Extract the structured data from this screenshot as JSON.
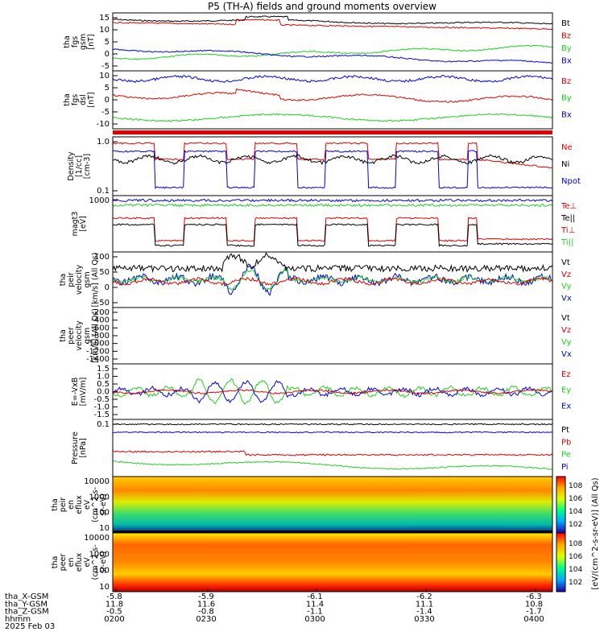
{
  "title": "P5 (TH-A) fields and ground moments overview",
  "colors": {
    "black": "#000000",
    "red": "#e00000",
    "green": "#20d020",
    "blue": "#0000e0"
  },
  "panels": [
    {
      "id": "fgs_gsm",
      "ylabel": [
        "tha",
        "fgs",
        "gsm",
        "[nT]"
      ],
      "ticks": [
        "15",
        "10",
        "5",
        "0",
        "-5"
      ],
      "legend": [
        {
          "text": "Bt",
          "color": "black"
        },
        {
          "text": "Bz",
          "color": "red"
        },
        {
          "text": "By",
          "color": "green"
        },
        {
          "text": "Bx",
          "color": "blue"
        }
      ]
    },
    {
      "id": "fgs_dsl",
      "ylabel": [
        "tha",
        "fgs",
        "dsl",
        "[nT]"
      ],
      "ticks": [
        "10",
        "5",
        "0",
        "-5",
        "-10"
      ],
      "legend": [
        {
          "text": "Bz",
          "color": "red"
        },
        {
          "text": "By",
          "color": "green"
        },
        {
          "text": "Bx",
          "color": "blue"
        }
      ]
    },
    {
      "id": "density",
      "ylabel": [
        "Density",
        "[1/cc]",
        "[cm-3]"
      ],
      "ticks": [
        "1.0",
        "0.1"
      ],
      "legend": [
        {
          "text": "Ne",
          "color": "red"
        },
        {
          "text": "Ni",
          "color": "black"
        },
        {
          "text": "Npot",
          "color": "blue"
        }
      ]
    },
    {
      "id": "temp",
      "ylabel": [
        "magt3",
        "[eV]"
      ],
      "ticks": [
        "1000"
      ],
      "legend": [
        {
          "text": "Te⊥",
          "color": "red"
        },
        {
          "text": "Te||",
          "color": "black"
        },
        {
          "text": "Ti⊥",
          "color": "red"
        },
        {
          "text": "Ti||",
          "color": "green"
        }
      ]
    },
    {
      "id": "peir_vel",
      "ylabel": [
        "tha",
        "peir",
        "velocity",
        "gsm",
        "[km/s] (All Qs)"
      ],
      "ticks": [
        "100",
        "50",
        "0",
        "-50"
      ],
      "legend": [
        {
          "text": "Vt",
          "color": "black"
        },
        {
          "text": "Vz",
          "color": "red"
        },
        {
          "text": "Vy",
          "color": "green"
        },
        {
          "text": "Vx",
          "color": "blue"
        }
      ]
    },
    {
      "id": "peer_vel",
      "ylabel": [
        "tha",
        "peer",
        "velocity",
        "gsm",
        "[km/s] (All Qs)"
      ],
      "ticks": [
        "-200",
        "-400",
        "-600",
        "-800",
        "-1000",
        "-1200",
        "-1400"
      ],
      "legend": [
        {
          "text": "Vt",
          "color": "black"
        },
        {
          "text": "Vz",
          "color": "red"
        },
        {
          "text": "Vy",
          "color": "green"
        },
        {
          "text": "Vx",
          "color": "blue"
        }
      ]
    },
    {
      "id": "efield",
      "ylabel": [
        "E=-VxB",
        "[mV/m]"
      ],
      "ticks": [
        "1.5",
        "1.0",
        "0.5",
        "0.0",
        "-0.5",
        "-1.0",
        "-1.5"
      ],
      "legend": [
        {
          "text": "Ez",
          "color": "red"
        },
        {
          "text": "Ey",
          "color": "green"
        },
        {
          "text": "Ex",
          "color": "blue"
        }
      ]
    },
    {
      "id": "pressure",
      "ylabel": [
        "Pressure",
        "[nPa]"
      ],
      "ticks": [
        "0.1"
      ],
      "legend": [
        {
          "text": "Pt",
          "color": "black"
        },
        {
          "text": "Pb",
          "color": "red"
        },
        {
          "text": "Pe",
          "color": "green"
        },
        {
          "text": "Pi",
          "color": "blue"
        }
      ]
    },
    {
      "id": "peir_en",
      "ylabel": [
        "tha",
        "peir",
        "en",
        "eflux",
        "eV",
        "(cm^2-s-",
        "sr-eV)"
      ],
      "ticks": [
        "10000",
        "1000",
        "100",
        "10"
      ],
      "legend": []
    },
    {
      "id": "peer_en",
      "ylabel": [
        "tha",
        "peer",
        "en",
        "eflux",
        "eV",
        "(cm^2-s-",
        "sr-eV)"
      ],
      "ticks": [
        "10000",
        "1000",
        "100",
        "10"
      ],
      "legend": []
    }
  ],
  "colorbar": {
    "label": "[eV/(cm^2-s-sr-eV)] (All Qs)",
    "ticks_top": [
      "10^8",
      "10^6",
      "10^4",
      "10^2"
    ],
    "ticks_bottom": [
      "10^8",
      "10^6",
      "10^4",
      "10^2"
    ]
  },
  "xaxis": {
    "rows": [
      {
        "label": "tha_X-GSM",
        "values": [
          "-5.8",
          "-5.9",
          "-6.1",
          "-6.2",
          "-6.3"
        ]
      },
      {
        "label": "tha_Y-GSM",
        "values": [
          "11.8",
          "11.6",
          "11.4",
          "11.1",
          "10.8"
        ]
      },
      {
        "label": "tha_Z-GSM",
        "values": [
          "-0.5",
          "-0.8",
          "-1.1",
          "-1.4",
          "-1.7"
        ]
      },
      {
        "label": "hhmm",
        "values": [
          "0200",
          "0230",
          "0300",
          "0330",
          "0400"
        ]
      }
    ],
    "date": "2025 Feb 03"
  },
  "chart_data": {
    "type": "line",
    "title": "P5 (TH-A) fields and ground moments overview",
    "x_range": [
      "0200",
      "0400"
    ],
    "series_summary": [
      {
        "panel": "fgs_gsm",
        "name": "Bt",
        "approx_values": [
          14.5,
          15,
          14,
          13.5,
          13
        ]
      },
      {
        "panel": "fgs_gsm",
        "name": "Bz",
        "approx_values": [
          14,
          14.5,
          12,
          11,
          10
        ]
      },
      {
        "panel": "fgs_gsm",
        "name": "By",
        "approx_values": [
          -5,
          -5,
          -3,
          -1,
          0.5
        ]
      },
      {
        "panel": "fgs_gsm",
        "name": "Bx",
        "approx_values": [
          0.5,
          -1,
          -1.5,
          -3,
          -6
        ]
      },
      {
        "panel": "peir_vel",
        "name": "Vt",
        "approx_values": [
          30,
          100,
          20,
          30,
          30
        ]
      },
      {
        "panel": "efield",
        "name": "Ey",
        "approx_values": [
          0,
          0.9,
          0.2,
          0.1,
          0.2
        ]
      }
    ]
  }
}
